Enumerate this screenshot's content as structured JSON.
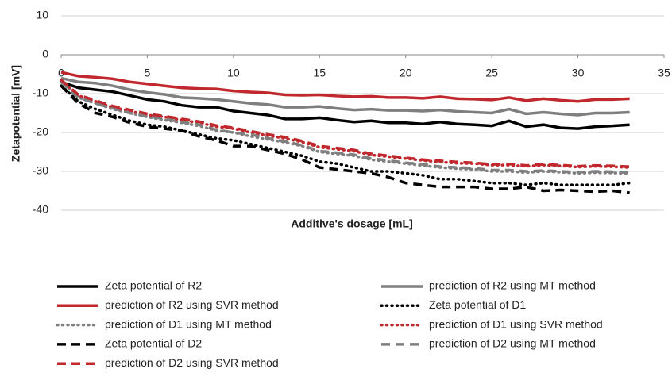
{
  "chart_data": {
    "type": "line",
    "x_label": "Additive's dosage [mL]",
    "y_label": "Zetapotential [mV]",
    "xlim": [
      0,
      35
    ],
    "xticks": [
      0,
      5,
      10,
      15,
      20,
      25,
      30,
      35
    ],
    "ylim": [
      -40,
      10
    ],
    "yticks": [
      -40,
      -30,
      -20,
      -10,
      0,
      10
    ],
    "grid": true,
    "x": [
      0,
      1,
      2,
      3,
      4,
      5,
      6,
      7,
      8,
      9,
      10,
      11,
      12,
      13,
      14,
      15,
      16,
      17,
      18,
      19,
      20,
      21,
      22,
      23,
      24,
      25,
      26,
      27,
      28,
      29,
      30,
      31,
      32,
      33
    ],
    "series": [
      {
        "name": "Zeta potential of R2",
        "color": "#000000",
        "dash": "solid",
        "values": [
          -7,
          -8.5,
          -9,
          -9.5,
          -10.5,
          -11.5,
          -12,
          -13,
          -13.5,
          -13.5,
          -14.5,
          -15,
          -15.5,
          -16.5,
          -16.5,
          -16.2,
          -16.8,
          -17.3,
          -17,
          -17.5,
          -17.5,
          -17.8,
          -17.3,
          -17.8,
          -18,
          -18.3,
          -17,
          -18.5,
          -18,
          -18.8,
          -19,
          -18.5,
          -18.3,
          -18
        ]
      },
      {
        "name": "prediction of R2 using MT method",
        "color": "#7f7f7f",
        "dash": "solid",
        "values": [
          -6,
          -7,
          -7.3,
          -8,
          -9,
          -9.7,
          -10.2,
          -11,
          -11.2,
          -11.5,
          -12,
          -12.5,
          -12.8,
          -13.5,
          -13.5,
          -13.3,
          -13.8,
          -14.2,
          -14,
          -14.3,
          -14.3,
          -14.5,
          -14.2,
          -14.6,
          -14.8,
          -15,
          -14,
          -15.2,
          -14.8,
          -15.2,
          -15.5,
          -15,
          -15,
          -14.8
        ]
      },
      {
        "name": "prediction of R2 using SVR method",
        "color": "#c0282d",
        "dash": "solid",
        "values": [
          -4.5,
          -5.5,
          -5.8,
          -6.2,
          -7,
          -7.5,
          -8,
          -8.5,
          -8.7,
          -8.8,
          -9.3,
          -9.6,
          -9.8,
          -10.3,
          -10.4,
          -10.3,
          -10.6,
          -10.8,
          -10.7,
          -11,
          -11,
          -11.2,
          -10.8,
          -11.3,
          -11.4,
          -11.6,
          -11,
          -11.8,
          -11.3,
          -11.7,
          -12,
          -11.5,
          -11.5,
          -11.3
        ]
      },
      {
        "name": "Zeta potential of D1",
        "color": "#000000",
        "dash": "dotted",
        "values": [
          -8,
          -12,
          -14,
          -15.5,
          -17,
          -18,
          -18.5,
          -19.5,
          -20.5,
          -21.5,
          -22,
          -23,
          -24,
          -25,
          -26,
          -27.5,
          -28,
          -29,
          -30,
          -30,
          -30.5,
          -31,
          -32,
          -32,
          -32.5,
          -33,
          -33,
          -33.5,
          -33,
          -33.5,
          -33.5,
          -33.5,
          -33.5,
          -33
        ]
      },
      {
        "name": "prediction of D1 using MT method",
        "color": "#7f7f7f",
        "dash": "dotted",
        "values": [
          -7,
          -11,
          -12.5,
          -14,
          -15,
          -16,
          -16.8,
          -17.5,
          -18.3,
          -19.5,
          -20,
          -21,
          -21.8,
          -22.5,
          -23.5,
          -25,
          -25.5,
          -26,
          -27,
          -27.5,
          -28,
          -28.5,
          -29,
          -29.3,
          -29.5,
          -30,
          -30,
          -30.3,
          -30,
          -30.2,
          -30.5,
          -30.3,
          -30.4,
          -30.5
        ]
      },
      {
        "name": "prediction of D1 using SVR method",
        "color": "#c0282d",
        "dash": "dotted",
        "values": [
          -6.5,
          -10.5,
          -12,
          -13.5,
          -14.5,
          -15.5,
          -16,
          -16.8,
          -17.5,
          -18.5,
          -19,
          -20,
          -20.8,
          -21.5,
          -22.5,
          -23.8,
          -24.3,
          -24.8,
          -25.8,
          -26.2,
          -26.7,
          -27.2,
          -27.6,
          -27.9,
          -28,
          -28.4,
          -28.4,
          -28.7,
          -28.4,
          -28.6,
          -28.9,
          -28.7,
          -28.8,
          -29
        ]
      },
      {
        "name": "Zeta potential of D2",
        "color": "#000000",
        "dash": "dashed",
        "values": [
          -8,
          -12.5,
          -15,
          -16,
          -17.5,
          -18.5,
          -19,
          -19.5,
          -21,
          -22,
          -23.5,
          -23.5,
          -24.5,
          -25.5,
          -27,
          -29,
          -29.5,
          -30,
          -30.5,
          -31.5,
          -33,
          -33.5,
          -34,
          -34,
          -34,
          -34.5,
          -34.5,
          -34,
          -35,
          -34.8,
          -35,
          -35.2,
          -35,
          -35.5
        ]
      },
      {
        "name": "prediction of D2 using MT method",
        "color": "#7f7f7f",
        "dash": "dashed",
        "values": [
          -7,
          -11,
          -12.5,
          -13.8,
          -15,
          -15.8,
          -16.5,
          -17.3,
          -18,
          -19.3,
          -20,
          -20.5,
          -21.5,
          -22.3,
          -23.3,
          -24.8,
          -25.2,
          -25.7,
          -26.7,
          -27.2,
          -27.8,
          -28.2,
          -28.8,
          -29,
          -29.2,
          -29.7,
          -29.7,
          -30,
          -29.8,
          -30,
          -30.2,
          -30,
          -30.1,
          -30.3
        ]
      },
      {
        "name": "prediction of D2 using SVR method",
        "color": "#c0282d",
        "dash": "dashed",
        "values": [
          -6.5,
          -10.3,
          -11.8,
          -13.2,
          -14.2,
          -15.2,
          -15.8,
          -16.5,
          -17.2,
          -18.2,
          -18.8,
          -19.7,
          -20.5,
          -21.2,
          -22.2,
          -23.5,
          -24,
          -24.5,
          -25.5,
          -26,
          -26.5,
          -27,
          -27.3,
          -27.6,
          -27.8,
          -28.2,
          -28.1,
          -28.5,
          -28.2,
          -28.4,
          -28.7,
          -28.5,
          -28.6,
          -28.8
        ]
      }
    ]
  }
}
